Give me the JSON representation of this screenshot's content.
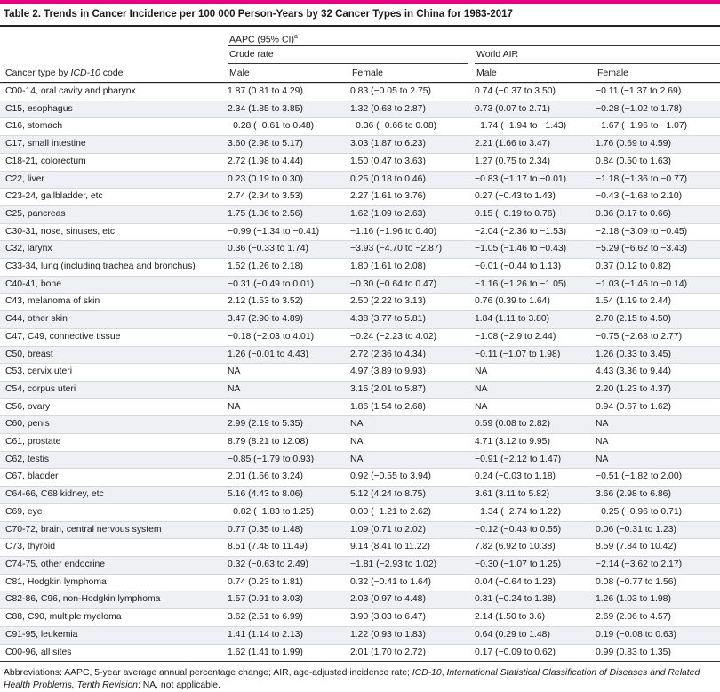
{
  "title": "Table 2. Trends in Cancer Incidence per 100 000 Person-Years by 32 Cancer Types in China for 1983-2017",
  "header": {
    "aapc": "AAPC (95% CI)",
    "aapc_sup": "a",
    "crude_rate": "Crude rate",
    "world_air": "World AIR",
    "cancer_type_prefix": "Cancer type by ",
    "cancer_type_icd": "ICD-10",
    "cancer_type_suffix": " code",
    "male": "Male",
    "female": "Female",
    "male2": "Male",
    "female2": "Female"
  },
  "rows": [
    {
      "type": "C00-14, oral cavity and pharynx",
      "cm": "1.87 (0.81 to 4.29)",
      "cf": "0.83 (−0.05 to 2.75)",
      "wm": "0.74 (−0.37 to 3.50)",
      "wf": "−0.11 (−1.37 to 2.69)"
    },
    {
      "type": "C15, esophagus",
      "cm": "2.34 (1.85 to 3.85)",
      "cf": "1.32 (0.68 to 2.87)",
      "wm": "0.73 (0.07 to 2.71)",
      "wf": "−0.28 (−1.02 to 1.78)"
    },
    {
      "type": "C16, stomach",
      "cm": "−0.28 (−0.61 to 0.48)",
      "cf": "−0.36 (−0.66 to 0.08)",
      "wm": "−1.74 (−1.94 to −1.43)",
      "wf": "−1.67 (−1.96 to −1.07)"
    },
    {
      "type": "C17, small intestine",
      "cm": "3.60 (2.98 to 5.17)",
      "cf": "3.03 (1.87 to 6.23)",
      "wm": "2.21 (1.66 to 3.47)",
      "wf": "1.76 (0.69 to 4.59)"
    },
    {
      "type": "C18-21, colorectum",
      "cm": "2.72 (1.98 to 4.44)",
      "cf": "1.50 (0.47 to 3.63)",
      "wm": "1.27 (0.75 to 2.34)",
      "wf": "0.84 (0.50 to 1.63)"
    },
    {
      "type": "C22, liver",
      "cm": "0.23 (0.19 to 0.30)",
      "cf": "0.25 (0.18 to 0.46)",
      "wm": "−0.83 (−1.17 to −0.01)",
      "wf": "−1.18 (−1.36 to −0.77)"
    },
    {
      "type": "C23-24, gallbladder, etc",
      "cm": "2.74 (2.34 to 3.53)",
      "cf": "2.27 (1.61 to 3.76)",
      "wm": "0.27 (−0.43 to 1.43)",
      "wf": "−0.43 (−1.68 to 2.10)"
    },
    {
      "type": "C25, pancreas",
      "cm": "1.75 (1.36 to 2.56)",
      "cf": "1.62 (1.09 to 2.63)",
      "wm": "0.15 (−0.19 to 0.76)",
      "wf": "0.36 (0.17 to 0.66)"
    },
    {
      "type": "C30-31, nose, sinuses, etc",
      "cm": "−0.99 (−1.34 to −0.41)",
      "cf": "−1.16 (−1.96 to 0.40)",
      "wm": "−2.04 (−2.36 to −1.53)",
      "wf": "−2.18 (−3.09 to −0.45)"
    },
    {
      "type": "C32, larynx",
      "cm": "0.36 (−0.33 to 1.74)",
      "cf": "−3.93 (−4.70 to −2.87)",
      "wm": "−1.05 (−1.46 to −0.43)",
      "wf": "−5.29 (−6.62 to −3.43)"
    },
    {
      "type": "C33-34, lung (including trachea and bronchus)",
      "cm": "1.52 (1.26 to 2.18)",
      "cf": "1.80 (1.61 to 2.08)",
      "wm": "−0.01 (−0.44 to 1.13)",
      "wf": "0.37 (0.12 to 0.82)"
    },
    {
      "type": "C40-41, bone",
      "cm": "−0.31 (−0.49 to 0.01)",
      "cf": "−0.30 (−0.64 to 0.47)",
      "wm": "−1.16 (−1.26 to −1.05)",
      "wf": "−1.03 (−1.46 to −0.14)"
    },
    {
      "type": "C43, melanoma of skin",
      "cm": "2.12 (1.53 to 3.52)",
      "cf": "2.50 (2.22 to 3.13)",
      "wm": "0.76 (0.39 to 1.64)",
      "wf": "1.54 (1.19 to 2.44)"
    },
    {
      "type": "C44, other skin",
      "cm": "3.47 (2.90 to 4.89)",
      "cf": "4.38 (3.77 to 5.81)",
      "wm": "1.84 (1.11 to 3.80)",
      "wf": "2.70 (2.15 to 4.50)"
    },
    {
      "type": "C47, C49, connective tissue",
      "cm": "−0.18 (−2.03 to 4.01)",
      "cf": "−0.24 (−2.23 to 4.02)",
      "wm": "−1.08 (−2.9 to 2.44)",
      "wf": "−0.75 (−2.68 to 2.77)"
    },
    {
      "type": "C50, breast",
      "cm": "1.26 (−0.01 to 4.43)",
      "cf": "2.72 (2.36 to 4.34)",
      "wm": "−0.11 (−1.07 to 1.98)",
      "wf": "1.26 (0.33 to 3.45)"
    },
    {
      "type": "C53, cervix uteri",
      "cm": "NA",
      "cf": "4.97 (3.89 to 9.93)",
      "wm": "NA",
      "wf": "4.43 (3.36 to 9.44)"
    },
    {
      "type": "C54, corpus uteri",
      "cm": "NA",
      "cf": "3.15 (2.01 to 5.87)",
      "wm": "NA",
      "wf": "2.20 (1.23 to 4.37)"
    },
    {
      "type": "C56, ovary",
      "cm": "NA",
      "cf": "1.86 (1.54 to 2.68)",
      "wm": "NA",
      "wf": "0.94 (0.67 to 1.62)"
    },
    {
      "type": "C60, penis",
      "cm": "2.99 (2.19 to 5.35)",
      "cf": "NA",
      "wm": "0.59 (0.08 to 2.82)",
      "wf": "NA"
    },
    {
      "type": "C61, prostate",
      "cm": "8.79 (8.21 to 12.08)",
      "cf": "NA",
      "wm": "4.71 (3.12 to 9.95)",
      "wf": "NA"
    },
    {
      "type": "C62, testis",
      "cm": "−0.85 (−1.79 to 0.93)",
      "cf": "NA",
      "wm": "−0.91 (−2.12 to 1.47)",
      "wf": "NA"
    },
    {
      "type": "C67, bladder",
      "cm": "2.01 (1.66 to 3.24)",
      "cf": "0.92 (−0.55 to 3.94)",
      "wm": "0.24 (−0.03 to 1.18)",
      "wf": "−0.51 (−1.82 to 2.00)"
    },
    {
      "type": "C64-66, C68 kidney, etc",
      "cm": "5.16 (4.43 to 8.06)",
      "cf": "5.12 (4.24 to 8.75)",
      "wm": "3.61 (3.11 to 5.82)",
      "wf": "3.66 (2.98 to 6.86)"
    },
    {
      "type": "C69, eye",
      "cm": "−0.82 (−1.83 to 1.25)",
      "cf": "0.00 (−1.21 to 2.62)",
      "wm": "−1.34 (−2.74 to 1.22)",
      "wf": "−0.25 (−0.96 to 0.71)"
    },
    {
      "type": "C70-72, brain, central nervous system",
      "cm": "0.77 (0.35 to 1.48)",
      "cf": "1.09 (0.71 to 2.02)",
      "wm": "−0.12 (−0.43 to 0.55)",
      "wf": "0.06 (−0.31 to 1.23)"
    },
    {
      "type": "C73, thyroid",
      "cm": "8.51 (7.48 to 11.49)",
      "cf": "9.14 (8.41 to 11.22)",
      "wm": "7.82 (6.92 to 10.38)",
      "wf": "8.59 (7.84 to 10.42)"
    },
    {
      "type": "C74-75, other endocrine",
      "cm": "0.32 (−0.63 to 2.49)",
      "cf": "−1.81 (−2.93 to 1.02)",
      "wm": "−0.30 (−1.07 to 1.25)",
      "wf": "−2.14 (−3.62 to 2.17)"
    },
    {
      "type": "C81, Hodgkin lymphoma",
      "cm": "0.74 (0.23 to 1.81)",
      "cf": "0.32 (−0.41 to 1.64)",
      "wm": "0.04 (−0.64 to 1.23)",
      "wf": "0.08 (−0.77 to 1.56)"
    },
    {
      "type": "C82-86, C96, non-Hodgkin lymphoma",
      "cm": "1.57 (0.91 to 3.03)",
      "cf": "2.03 (0.97 to 4.48)",
      "wm": "0.31 (−0.24 to 1.38)",
      "wf": "1.26 (1.03 to 1.98)"
    },
    {
      "type": "C88, C90, multiple myeloma",
      "cm": "3.62 (2.51 to 6.99)",
      "cf": "3.90 (3.03 to 6.47)",
      "wm": "2.14 (1.50 to 3.6)",
      "wf": "2.69 (2.06 to 4.57)"
    },
    {
      "type": "C91-95, leukemia",
      "cm": "1.41 (1.14 to 2.13)",
      "cf": "1.22 (0.93 to 1.83)",
      "wm": "0.64 (0.29 to 1.48)",
      "wf": "0.19 (−0.08 to 0.63)"
    },
    {
      "type": "C00-96, all sites",
      "cm": "1.62 (1.41 to 1.99)",
      "cf": "2.01 (1.70 to 2.72)",
      "wm": "0.17 (−0.09 to 0.62)",
      "wf": "0.99 (0.83 to 1.35)"
    }
  ],
  "footnote": {
    "p1": "Abbreviations: AAPC, 5-year average annual percentage change; AIR, age-adjusted incidence rate; ",
    "icd": "ICD-10",
    "p2": ", ",
    "full": "International Statistical Classification of Diseases and Related Health Problems, Tenth Revision",
    "p3": "; NA, not applicable."
  }
}
